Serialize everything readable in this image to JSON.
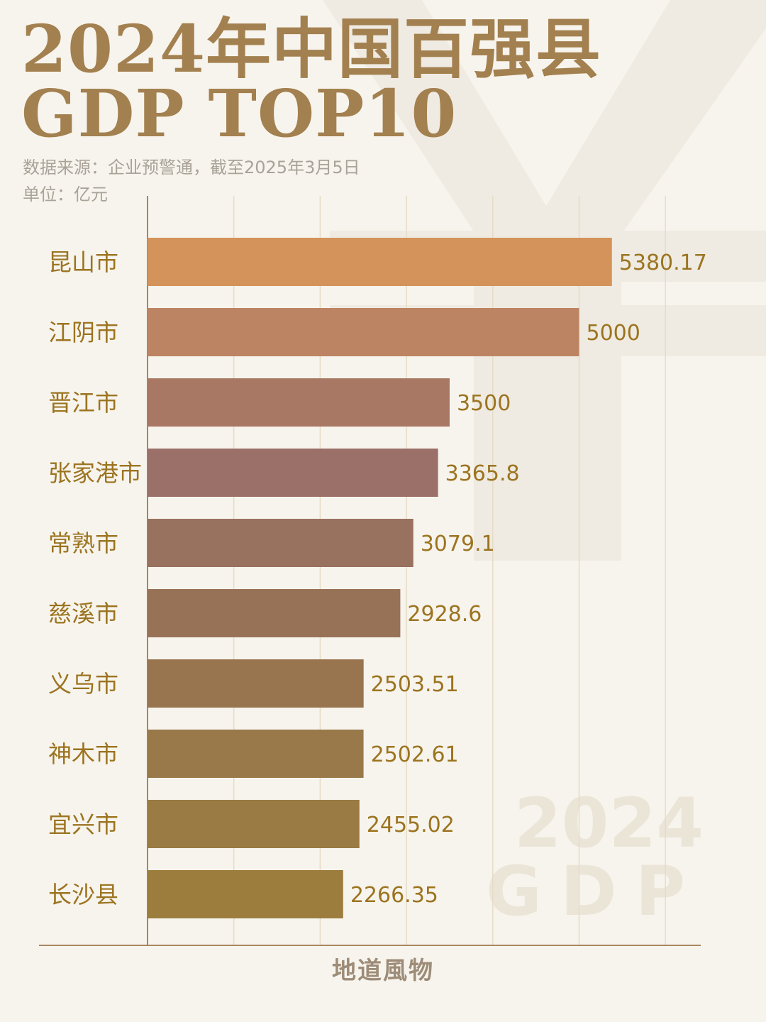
{
  "header": {
    "title_line1": "2024年中国百强县",
    "title_line2": "GDP TOP10",
    "source": "数据来源：企业预警通，截至2025年3月5日",
    "unit": "单位：亿元"
  },
  "watermark": {
    "symbol": "¥",
    "year": "2024",
    "label": "GDP"
  },
  "footer": {
    "brand": "地道風物"
  },
  "colors": {
    "background": "#f7f4ed",
    "title": "#a3804f",
    "label": "#9c7420",
    "grid": "#e6dcc6",
    "axis": "#a8855f",
    "bar_top": "#d4935a",
    "bar_mid": "#9b7068",
    "bar_bottom": "#9c7d3e"
  },
  "chart_data": {
    "type": "bar",
    "orientation": "horizontal",
    "categories": [
      "昆山市",
      "江阴市",
      "晋江市",
      "张家港市",
      "常熟市",
      "慈溪市",
      "义乌市",
      "神木市",
      "宜兴市",
      "长沙县"
    ],
    "values": [
      5380.17,
      5000,
      3500,
      3365.8,
      3079.1,
      2928.6,
      2503.51,
      2502.61,
      2455.02,
      2266.35
    ],
    "value_labels": [
      "5380.17",
      "5000",
      "3500",
      "3365.8",
      "3079.1",
      "2928.6",
      "2503.51",
      "2502.61",
      "2455.02",
      "2266.35"
    ],
    "bar_colors": [
      "#d4935a",
      "#bd8463",
      "#a97865",
      "#9b7068",
      "#99715f",
      "#987257",
      "#98744f",
      "#997849",
      "#9a7b43",
      "#9c7d3e"
    ],
    "xlim": [
      0,
      6500
    ],
    "grid_step": 1000,
    "grid": true,
    "title": "2024年中国百强县 GDP TOP10",
    "xlabel": "",
    "ylabel": ""
  }
}
